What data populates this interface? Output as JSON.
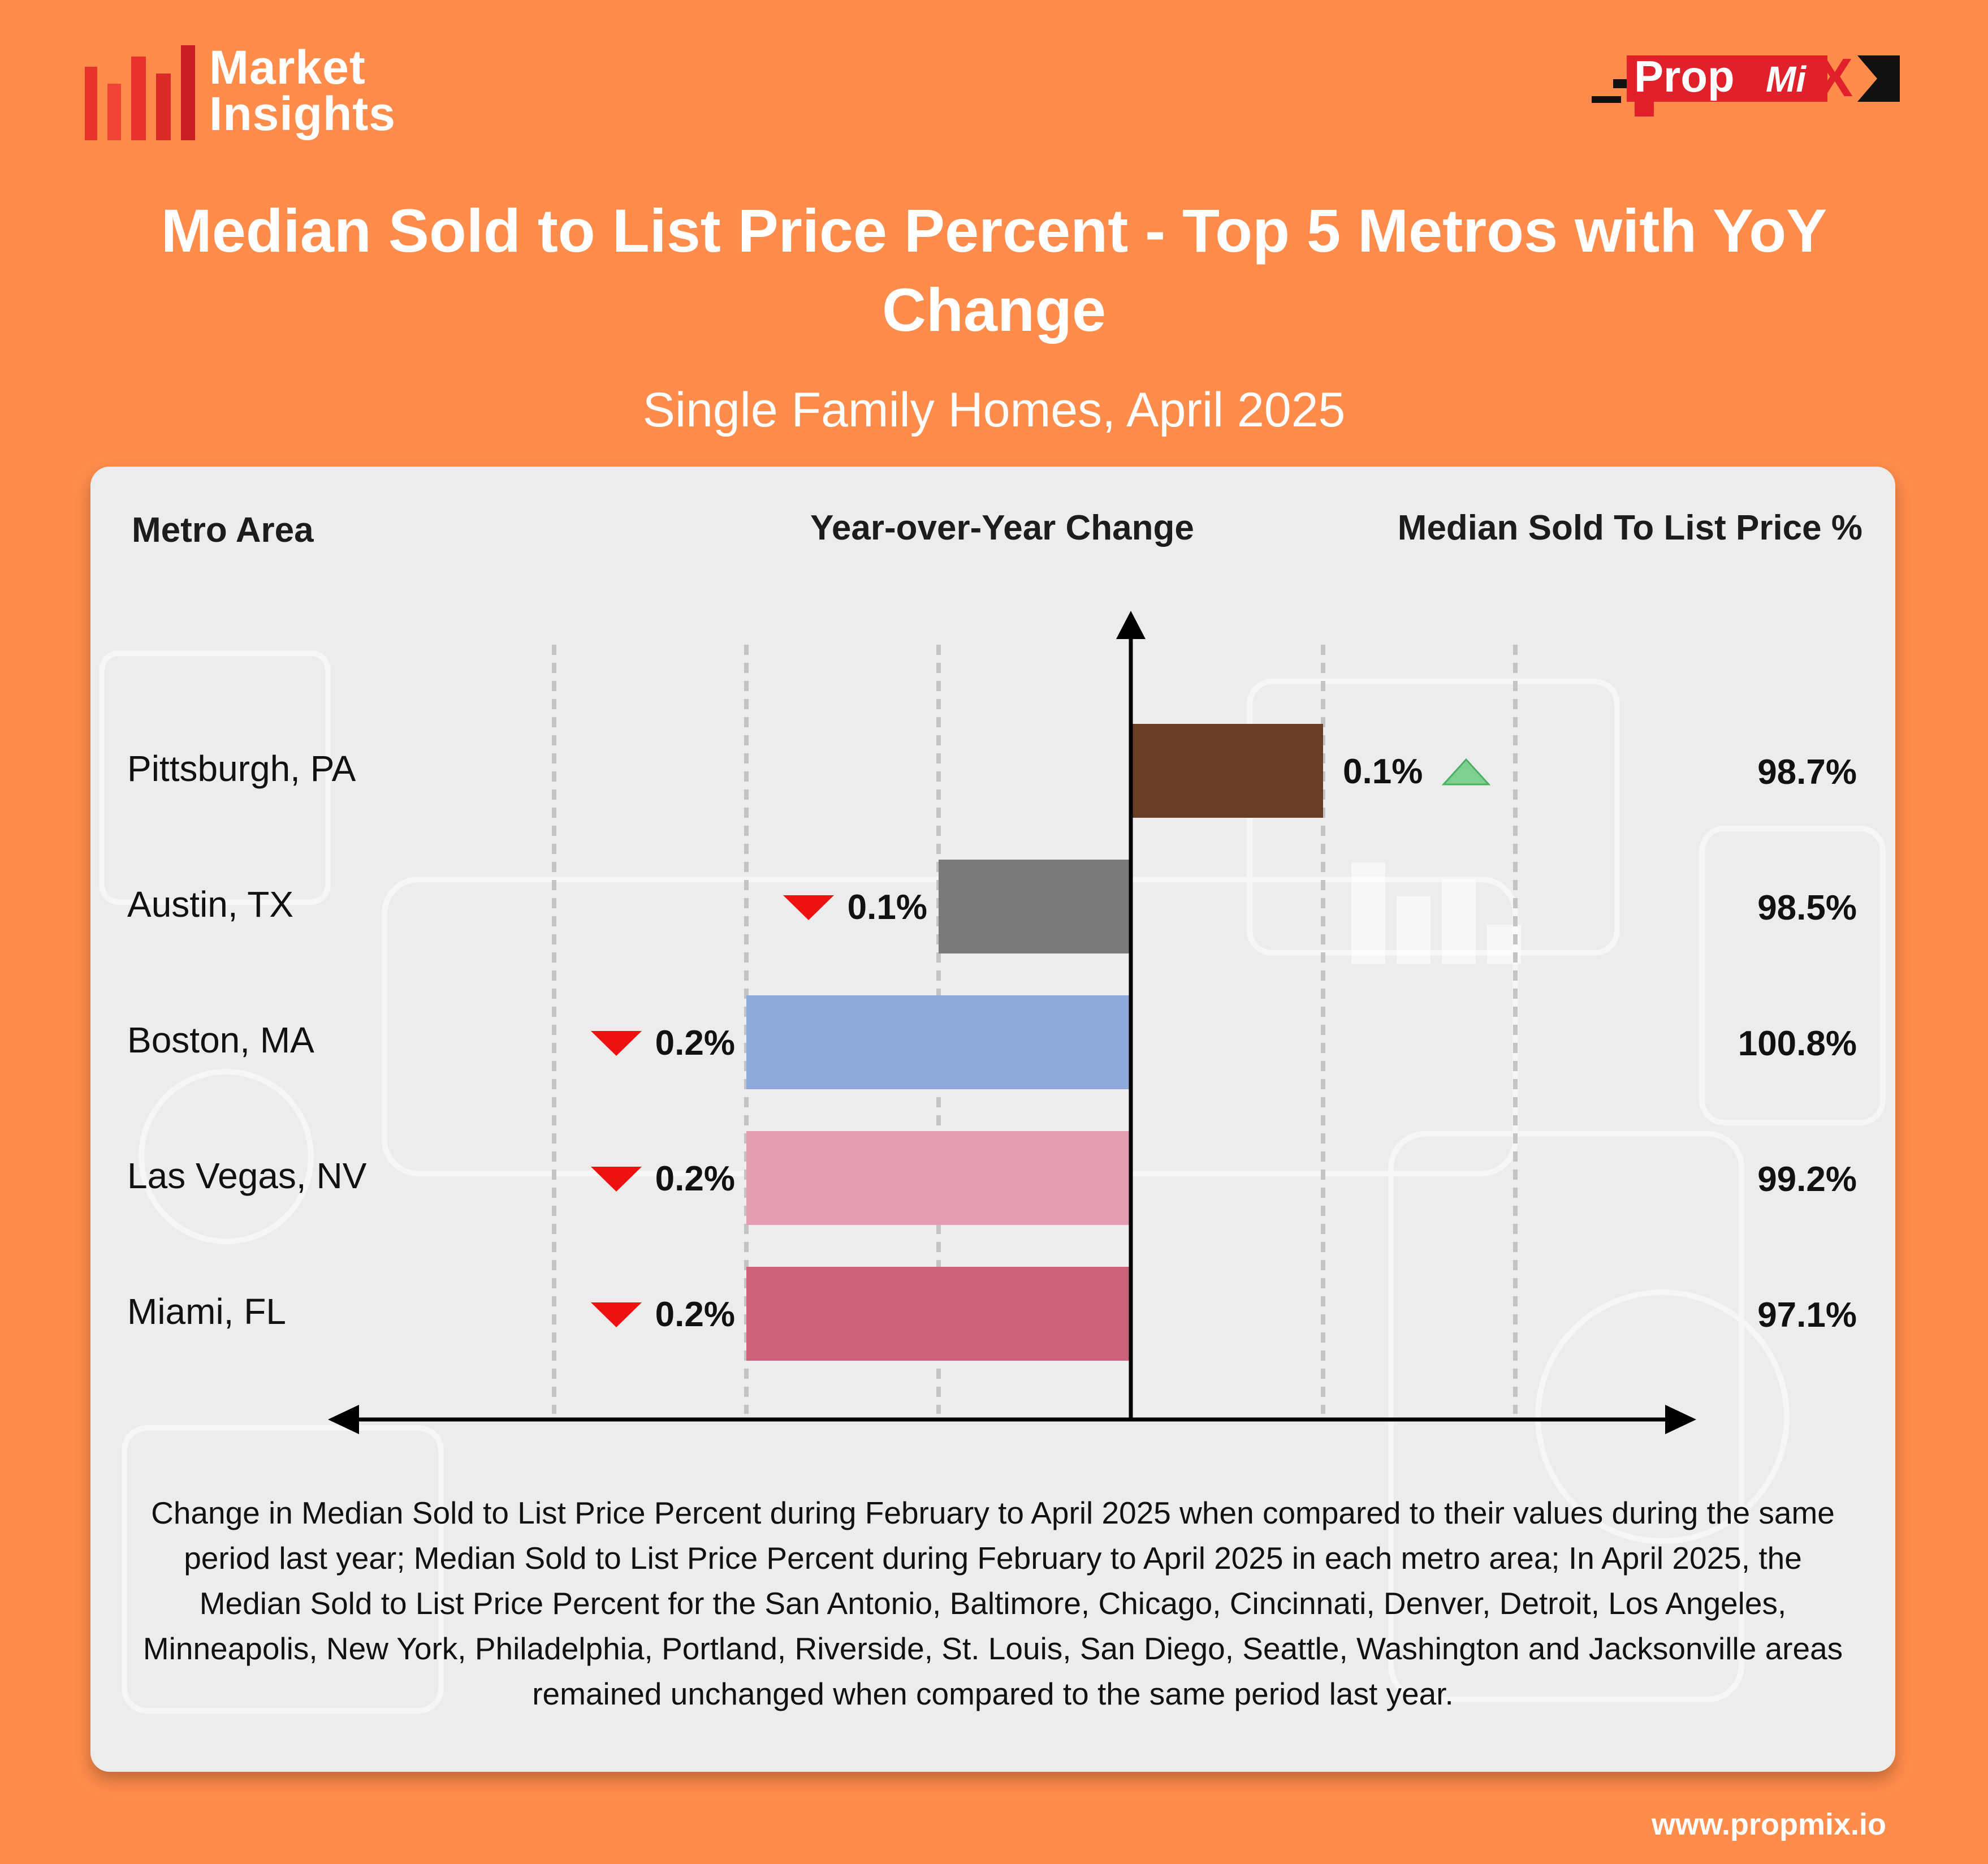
{
  "brand": {
    "line1": "Market",
    "line2": "Insights",
    "colors": [
      "#E8322B",
      "#F04236",
      "#C81E24"
    ]
  },
  "partner_logo": {
    "text_main": "Prop",
    "text_mi": "Mi",
    "text_x": "X",
    "red": "#E0202A",
    "black": "#111111"
  },
  "title": "Median Sold to List Price Percent - Top 5 Metros with YoY Change",
  "subtitle": "Single Family Homes, April 2025",
  "columns": {
    "metro": "Metro Area",
    "yoy": "Year-over-Year Change",
    "pct": "Median Sold To List Price %"
  },
  "rows": [
    {
      "metro": "Pittsburgh, PA",
      "pct": "98.7%",
      "yoy_label": "0.1%"
    },
    {
      "metro": "Austin, TX",
      "pct": "98.5%",
      "yoy_label": "0.1%"
    },
    {
      "metro": "Boston, MA",
      "pct": "100.8%",
      "yoy_label": "0.2%"
    },
    {
      "metro": "Las Vegas, NV",
      "pct": "99.2%",
      "yoy_label": "0.2%"
    },
    {
      "metro": "Miami, FL",
      "pct": "97.1%",
      "yoy_label": "0.2%"
    }
  ],
  "chart_data": {
    "type": "bar",
    "orientation": "horizontal-diverging",
    "title": "Year-over-Year Change",
    "categories": [
      "Pittsburgh, PA",
      "Austin, TX",
      "Boston, MA",
      "Las Vegas, NV",
      "Miami, FL"
    ],
    "values": [
      0.1,
      -0.1,
      -0.2,
      -0.2,
      -0.2
    ],
    "labels": [
      "0.1%",
      "0.1%",
      "0.2%",
      "0.2%",
      "0.2%"
    ],
    "colors": [
      "#673D25",
      "#7A7A7A",
      "#90AADB",
      "#E39CB1",
      "#CB617B"
    ],
    "up_color": "#7DD08F",
    "down_color": "#EE1111",
    "xlim": [
      -0.3,
      0.2
    ],
    "grid": true,
    "gridlines": [
      -0.3,
      -0.2,
      -0.1,
      0.1,
      0.2
    ]
  },
  "footnote": "Change in Median Sold to List Price Percent during February to April 2025 when compared to their values during the same period last year; Median Sold to List Price Percent during February to April 2025 in each metro area; In April 2025, the Median Sold to List Price Percent for the San Antonio, Baltimore, Chicago, Cincinnati, Denver, Detroit, Los Angeles, Minneapolis, New York, Philadelphia, Portland, Riverside, St. Louis, San Diego, Seattle, Washington and Jacksonville areas remained unchanged when compared to the same period last year.",
  "website": "www.propmix.io"
}
